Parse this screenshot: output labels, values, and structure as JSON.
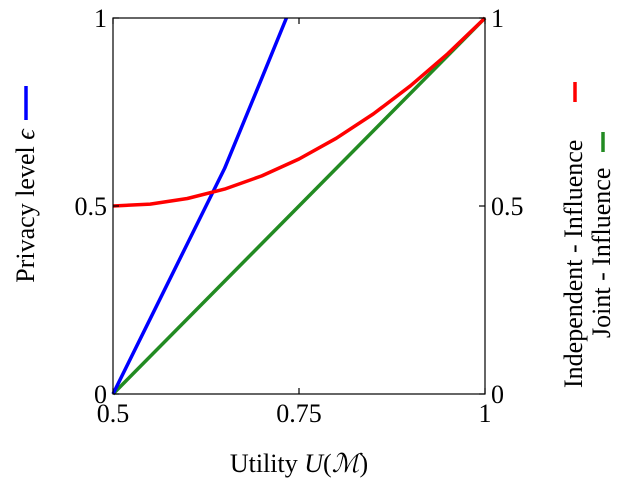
{
  "chart_data": {
    "type": "line",
    "xlabel": "Utility U(ℳ)",
    "ylabel": "Privacy level ϵ",
    "xlim": [
      0.5,
      1
    ],
    "ylim": [
      0,
      1
    ],
    "x_ticks": [
      "0.5",
      "0.75",
      "1"
    ],
    "y_ticks_left": [
      "0",
      "0.5",
      "1"
    ],
    "y_ticks_right": [
      "0",
      "0.5",
      "1"
    ],
    "grid": false,
    "legend_position": "right, rotated vertical",
    "series": [
      {
        "name": "",
        "color": "#0000ff",
        "x": [
          0.5,
          0.55,
          0.6,
          0.65,
          0.7,
          0.733
        ],
        "y": [
          0.0,
          0.2,
          0.4,
          0.6,
          0.84,
          1.0
        ]
      },
      {
        "name": "Independent - Influence",
        "color": "#ff0000",
        "x": [
          0.5,
          0.55,
          0.6,
          0.65,
          0.7,
          0.75,
          0.8,
          0.85,
          0.9,
          0.95,
          1.0
        ],
        "y": [
          0.5,
          0.505,
          0.52,
          0.545,
          0.58,
          0.625,
          0.68,
          0.745,
          0.82,
          0.905,
          1.0
        ]
      },
      {
        "name": "Joint - Influence",
        "color": "#228b22",
        "x": [
          0.5,
          1.0
        ],
        "y": [
          0.0,
          1.0
        ]
      }
    ]
  }
}
